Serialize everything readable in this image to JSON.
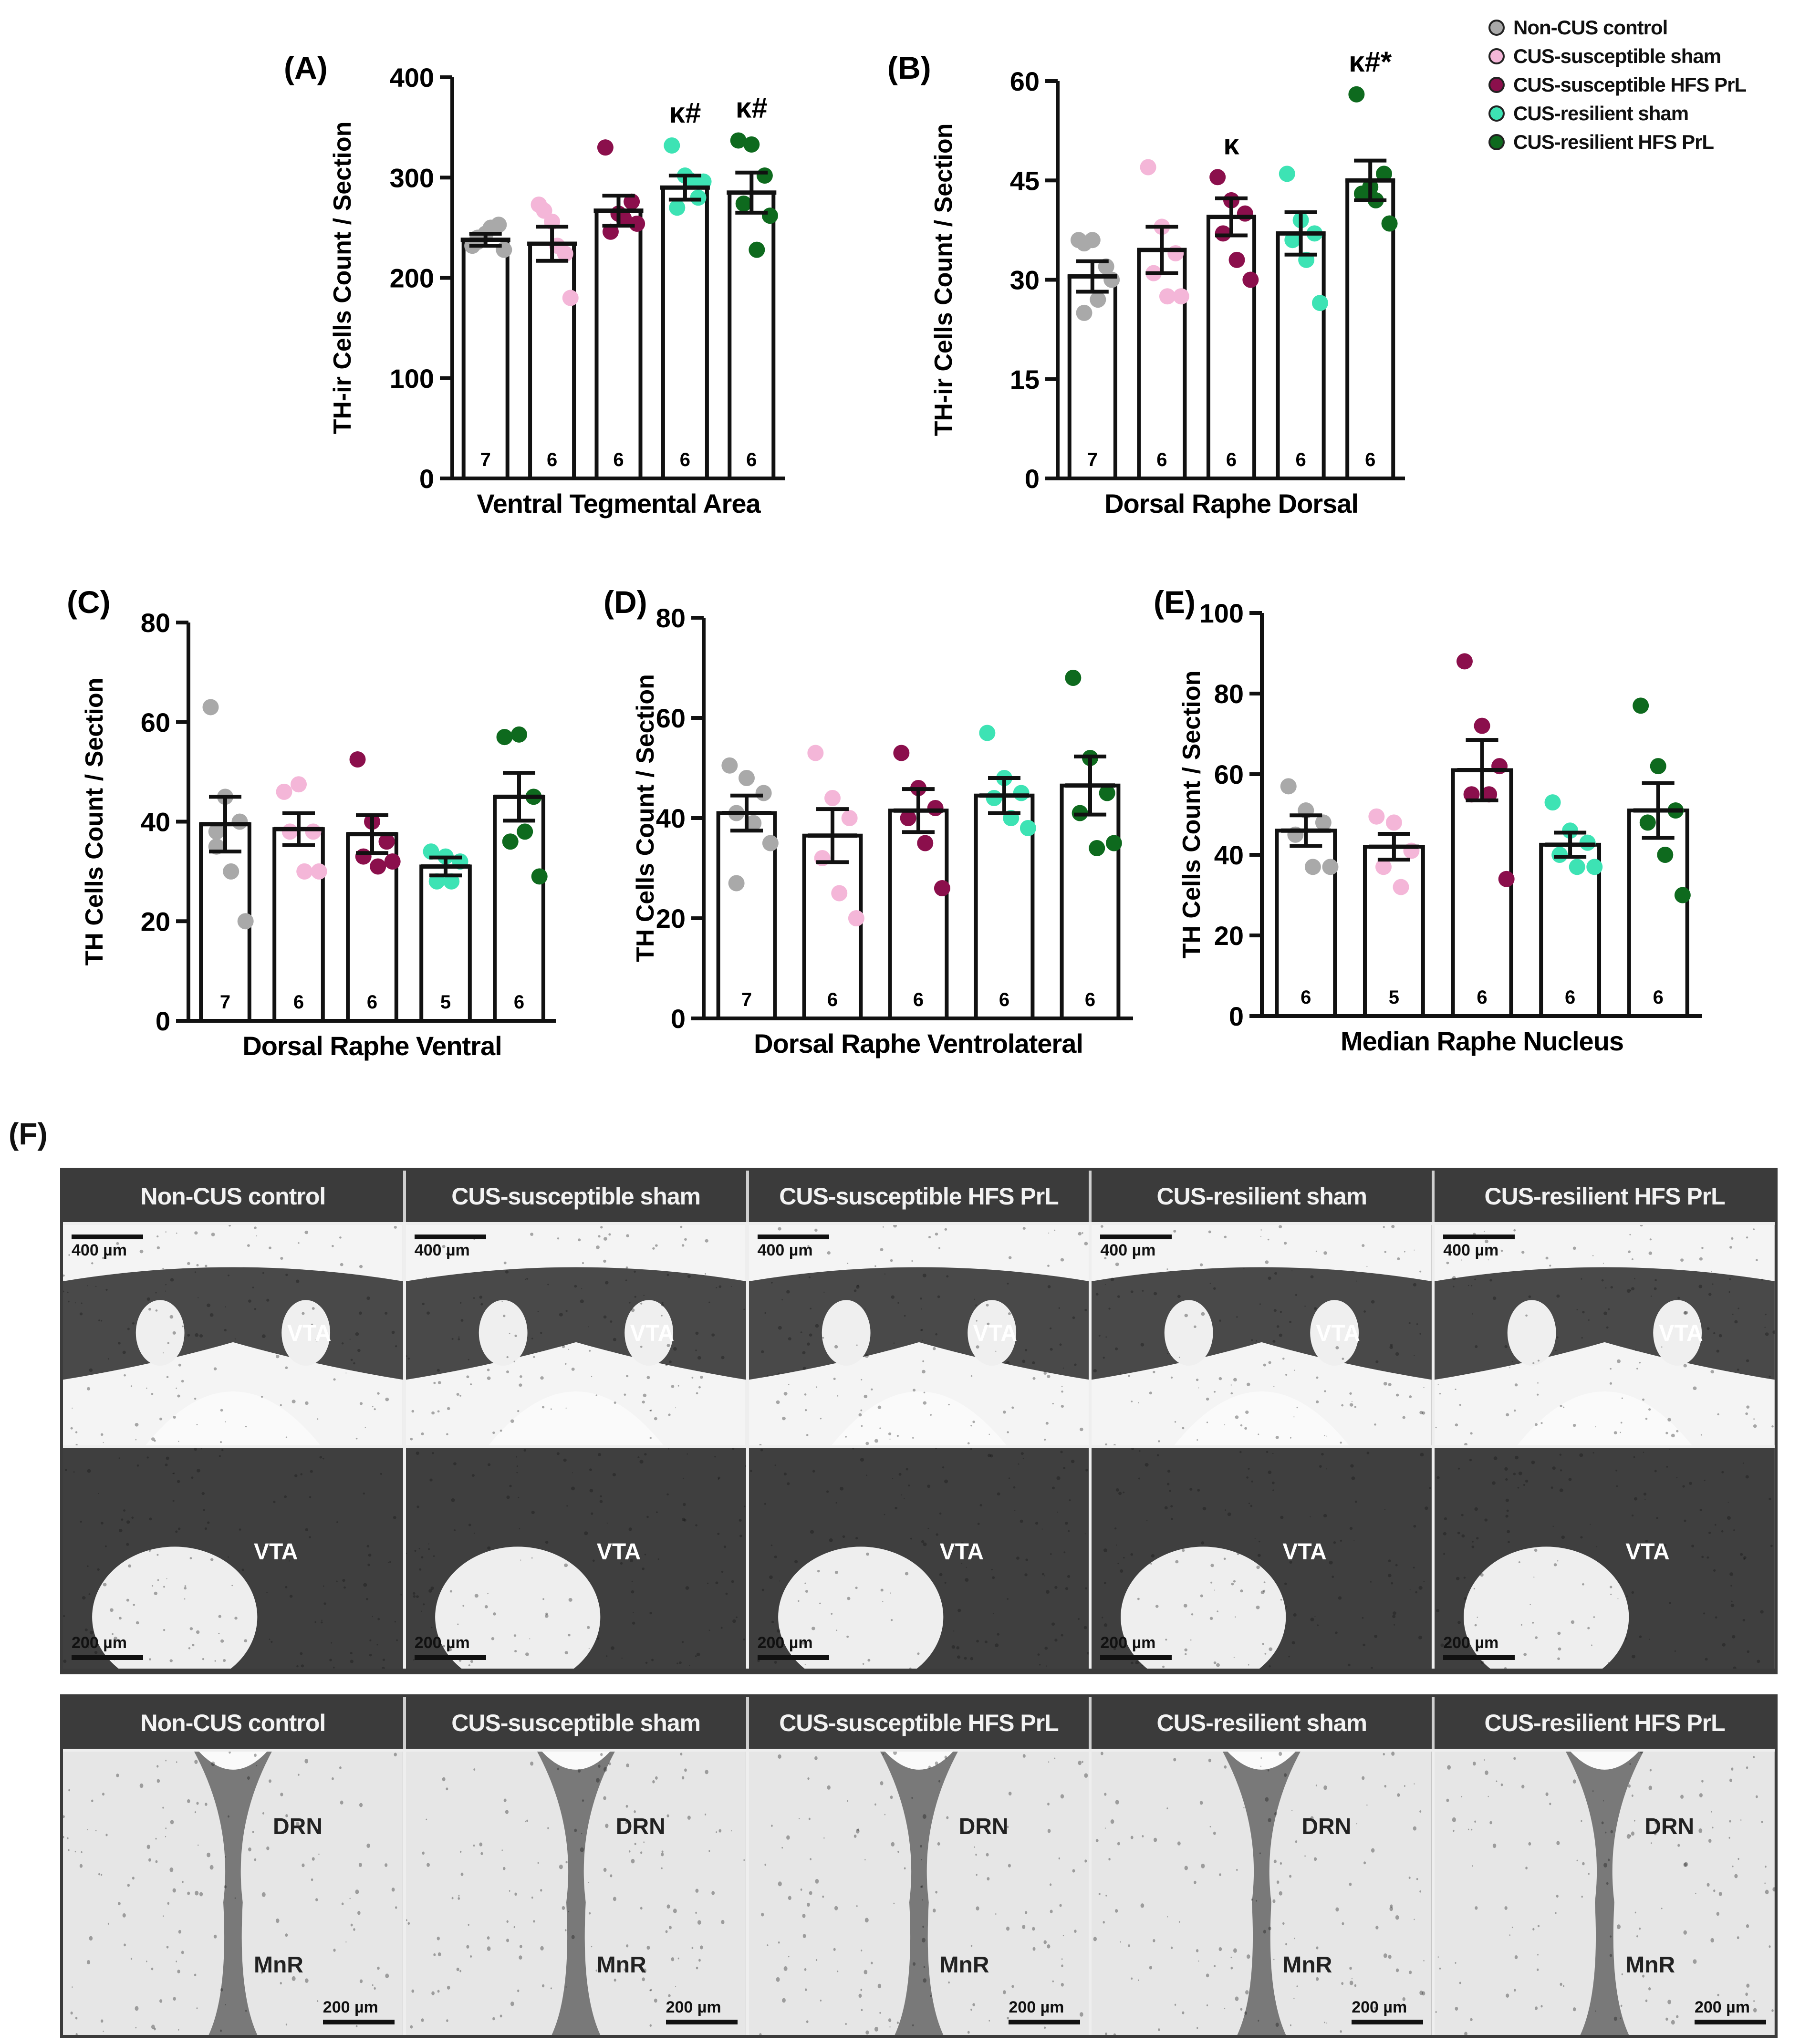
{
  "legend": {
    "items": [
      {
        "label": "Non-CUS control",
        "color": "#a9a9a9"
      },
      {
        "label": "CUS-susceptible sham",
        "color": "#f4b6d8"
      },
      {
        "label": "CUS-susceptible HFS PrL",
        "color": "#8b0f4c"
      },
      {
        "label": "CUS-resilient sham",
        "color": "#3de3b4"
      },
      {
        "label": "CUS-resilient HFS PrL",
        "color": "#0e6a1e"
      }
    ]
  },
  "chart_data": [
    {
      "panel": "(A)",
      "type": "bar",
      "title": "",
      "xlabel": "Ventral Tegmental Area",
      "ylabel": "TH-ir Cells Count / Section",
      "ylim": [
        0,
        400
      ],
      "ticks": [
        0,
        100,
        200,
        300,
        400
      ],
      "categories": [
        "Non-CUS control",
        "CUS-susceptible sham",
        "CUS-susceptible HFS PrL",
        "CUS-resilient sham",
        "CUS-resilient HFS PrL"
      ],
      "values": [
        238,
        234,
        267,
        290,
        285
      ],
      "sem": [
        6,
        17,
        15,
        12,
        20
      ],
      "n": [
        "7",
        "6",
        "6",
        "6",
        "6"
      ],
      "annotations": [
        "",
        "",
        "",
        "κ#",
        "κ#"
      ],
      "points": [
        [
          232,
          244,
          253,
          236,
          250,
          228,
          240
        ],
        [
          273,
          256,
          224,
          267,
          232,
          180
        ],
        [
          330,
          264,
          276,
          246,
          259,
          254
        ],
        [
          332,
          302,
          280,
          270,
          297,
          296
        ],
        [
          337,
          333,
          302,
          274,
          228,
          262
        ]
      ]
    },
    {
      "panel": "(B)",
      "type": "bar",
      "title": "",
      "xlabel": "Dorsal Raphe Dorsal",
      "ylabel": "TH-ir Cells Count / Section",
      "ylim": [
        0,
        60
      ],
      "ticks": [
        0,
        15,
        30,
        45,
        60
      ],
      "categories": [
        "Non-CUS control",
        "CUS-susceptible sham",
        "CUS-susceptible HFS PrL",
        "CUS-resilient sham",
        "CUS-resilient HFS PrL"
      ],
      "values": [
        30.5,
        34.5,
        39.5,
        37,
        45
      ],
      "sem": [
        2.3,
        3.5,
        2.8,
        3.2,
        3
      ],
      "n": [
        "7",
        "6",
        "6",
        "6",
        "6"
      ],
      "annotations": [
        "",
        "",
        "κ",
        "",
        "κ#*"
      ],
      "points": [
        [
          36,
          36,
          32,
          25,
          27,
          30,
          35.5
        ],
        [
          47,
          38,
          34,
          31,
          27.5,
          27.5
        ],
        [
          45.5,
          42,
          40,
          37,
          33,
          30
        ],
        [
          46,
          39,
          37,
          36,
          33,
          26.5
        ],
        [
          58,
          44,
          46,
          43,
          42,
          38.5
        ]
      ]
    },
    {
      "panel": "(C)",
      "type": "bar",
      "title": "",
      "xlabel": "Dorsal Raphe Ventral",
      "ylabel": "TH Cells  Count / Section",
      "ylim": [
        0,
        80
      ],
      "ticks": [
        0,
        20,
        40,
        60,
        80
      ],
      "categories": [
        "Non-CUS control",
        "CUS-susceptible sham",
        "CUS-susceptible HFS PrL",
        "CUS-resilient sham",
        "CUS-resilient HFS PrL"
      ],
      "values": [
        39.5,
        38.5,
        37.5,
        31,
        45
      ],
      "sem": [
        5.5,
        3.2,
        3.8,
        1.8,
        4.8
      ],
      "n": [
        "7",
        "6",
        "6",
        "5",
        "6"
      ],
      "annotations": [
        "",
        "",
        "",
        "",
        ""
      ],
      "points": [
        [
          63,
          45,
          40,
          38,
          30,
          20,
          35
        ],
        [
          46,
          47.5,
          38,
          38,
          30,
          30
        ],
        [
          52.5,
          40,
          36,
          33,
          31,
          32
        ],
        [
          34,
          33,
          32,
          28,
          28
        ],
        [
          57,
          57.5,
          45,
          36,
          38,
          29
        ]
      ]
    },
    {
      "panel": "(D)",
      "type": "bar",
      "title": "",
      "xlabel": "Dorsal Raphe Ventrolateral",
      "ylabel": "TH Cells  Count / Section",
      "ylim": [
        0,
        80
      ],
      "ticks": [
        0,
        20,
        40,
        60,
        80
      ],
      "categories": [
        "Non-CUS control",
        "CUS-susceptible sham",
        "CUS-susceptible HFS PrL",
        "CUS-resilient sham",
        "CUS-resilient HFS PrL"
      ],
      "values": [
        41,
        36.5,
        41.5,
        44.5,
        46.5
      ],
      "sem": [
        3.5,
        5.3,
        4.3,
        3.5,
        5.8
      ],
      "n": [
        "7",
        "6",
        "6",
        "6",
        "6"
      ],
      "annotations": [
        "",
        "",
        "",
        "",
        ""
      ],
      "points": [
        [
          50.5,
          48,
          45,
          41,
          39,
          35,
          27
        ],
        [
          53,
          44,
          40,
          32,
          25,
          20
        ],
        [
          53,
          46,
          42,
          40,
          35,
          26
        ],
        [
          57,
          48,
          45,
          44,
          40,
          38
        ],
        [
          68,
          52,
          45,
          41,
          34,
          35
        ]
      ]
    },
    {
      "panel": "(E)",
      "type": "bar",
      "title": "",
      "xlabel": "Median Raphe Nucleus",
      "ylabel": "TH Cells  Count / Section",
      "ylim": [
        0,
        100
      ],
      "ticks": [
        0,
        20,
        40,
        60,
        80,
        100
      ],
      "categories": [
        "Non-CUS control",
        "CUS-susceptible sham",
        "CUS-susceptible HFS PrL",
        "CUS-resilient sham",
        "CUS-resilient HFS PrL"
      ],
      "values": [
        46,
        42,
        61,
        42.5,
        51
      ],
      "sem": [
        3.8,
        3.2,
        7.5,
        3,
        6.8
      ],
      "n": [
        "6",
        "5",
        "6",
        "6",
        "6"
      ],
      "annotations": [
        "",
        "",
        "",
        "",
        ""
      ],
      "points": [
        [
          57,
          51,
          48,
          45,
          37,
          37
        ],
        [
          49.5,
          48,
          41,
          37,
          32
        ],
        [
          88,
          72,
          62,
          55,
          55,
          34
        ],
        [
          53,
          46,
          43,
          40,
          37,
          37
        ],
        [
          77,
          62,
          51,
          48,
          40,
          30
        ]
      ]
    }
  ],
  "micrographs": {
    "panel_label": "(F)",
    "headers": [
      "Non-CUS control",
      "CUS-susceptible sham",
      "CUS-susceptible HFS PrL",
      "CUS-resilient sham",
      "CUS-resilient HFS PrL"
    ],
    "vta_low_scale": "400 µm",
    "vta_high_scale": "200 µm",
    "raphe_scale": "200 µm",
    "vta_label": "VTA",
    "drn_label": "DRN",
    "mnr_label": "MnR"
  }
}
